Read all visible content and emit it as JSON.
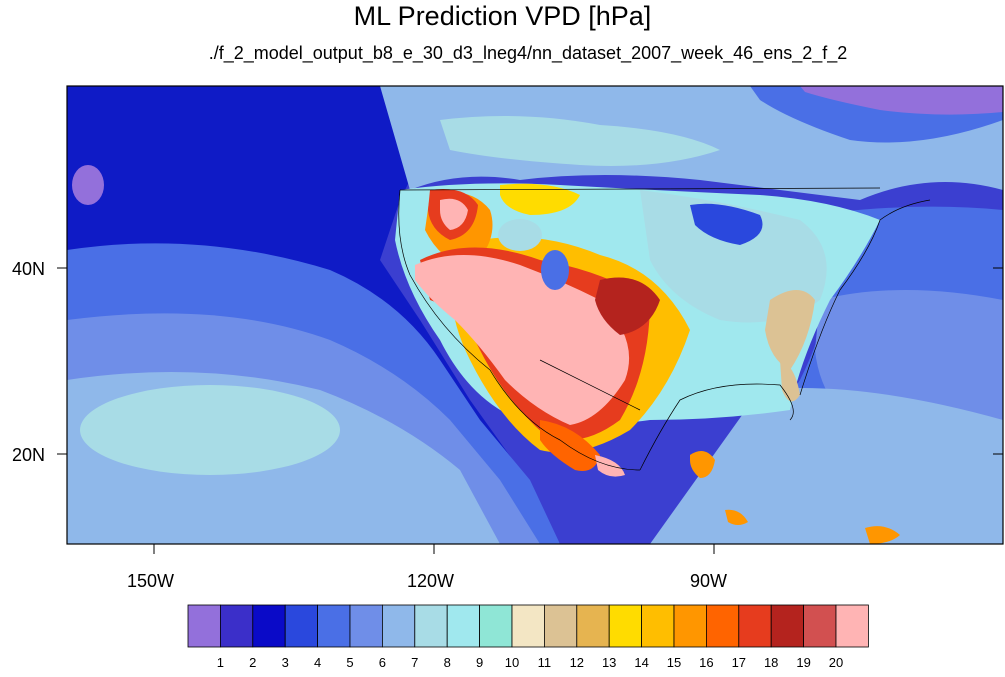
{
  "header": {
    "title": "ML Prediction VPD [hPa]",
    "subtitle": "./f_2_model_output_b8_e_30_d3_lneg4/nn_dataset_2007_week_46_ens_2_f_2"
  },
  "axes": {
    "x_ticks": [
      "150W",
      "120W",
      "90W"
    ],
    "y_ticks": [
      "40N",
      "20N"
    ]
  },
  "colorbar": {
    "labels": [
      "1",
      "2",
      "3",
      "4",
      "5",
      "6",
      "7",
      "8",
      "9",
      "10",
      "11",
      "12",
      "13",
      "14",
      "15",
      "16",
      "17",
      "18",
      "19",
      "20"
    ],
    "colors": [
      "#9370db",
      "#3b2fc9",
      "#0a0ac8",
      "#2a48dd",
      "#4a6fe6",
      "#6f8ee8",
      "#8fb8ea",
      "#a8dce6",
      "#a0e8ee",
      "#8fe6d6",
      "#f3e6c4",
      "#dcc294",
      "#e6b450",
      "#ffdc00",
      "#ffbe00",
      "#ff9600",
      "#ff6400",
      "#e63c1e",
      "#b4231e",
      "#d25050",
      "#ffb4b4"
    ]
  },
  "map": {
    "ocean_color": "#2a48dd",
    "extent": {
      "lon": [
        -166,
        -72
      ],
      "lat": [
        10,
        59
      ]
    }
  }
}
